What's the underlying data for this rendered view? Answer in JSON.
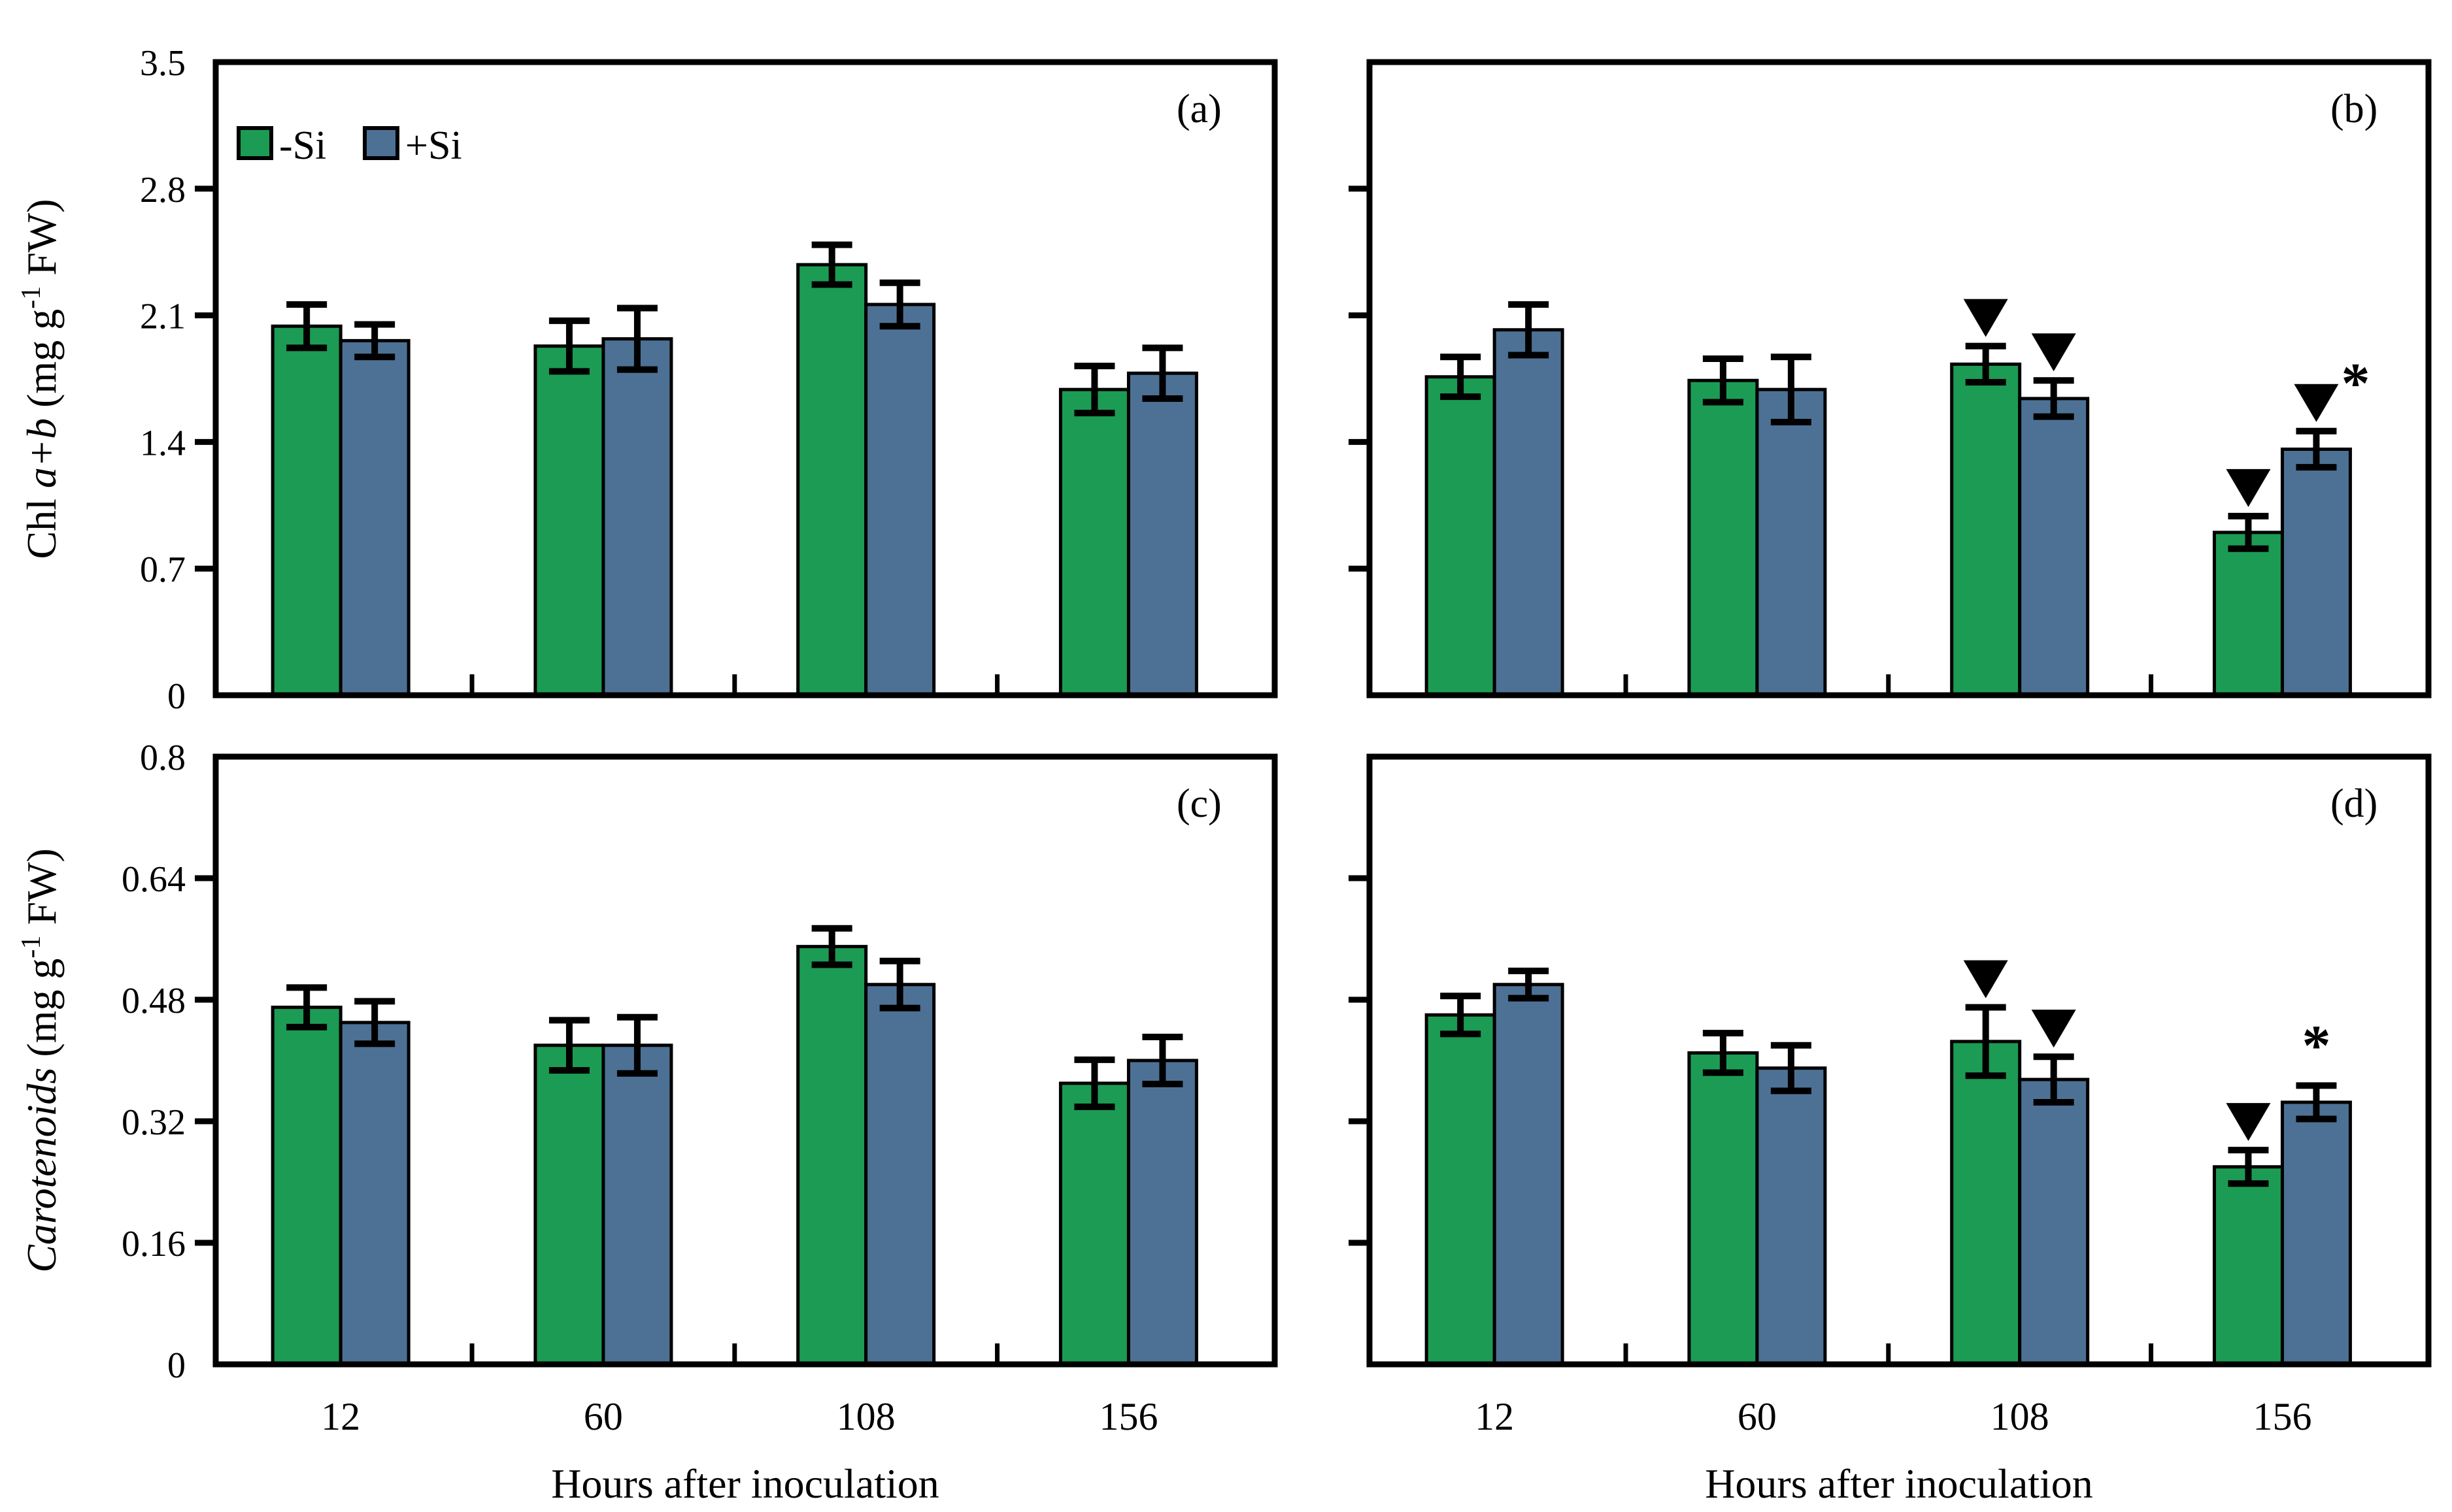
{
  "figure": {
    "xlabel": "Hours after inoculation",
    "panel_letters": [
      "(a)",
      "(b)",
      "(c)",
      "(d)"
    ],
    "legend": [
      {
        "label": "-Si",
        "color": "#1C9B54"
      },
      {
        "label": "+Si",
        "color": "#4D7194"
      }
    ],
    "colors": {
      "minus_si": "#1C9B54",
      "plus_si": "#4D7194",
      "axis": "#000000"
    }
  },
  "chart_data": [
    {
      "panel": "a",
      "letter": "(a)",
      "type": "bar",
      "title": "",
      "ylabel_text": "Chl a+b (mg g-1 FW)",
      "ylabel_parts": {
        "pre": "Chl ",
        "italic": "a+b",
        "post": " (mg g",
        "sup": "-1",
        "end": " FW)"
      },
      "ylim": [
        0,
        3.5
      ],
      "yticks": [
        0,
        0.7,
        1.4,
        2.1,
        2.8,
        3.5
      ],
      "ytick_labels": [
        "0",
        "0.7",
        "1.4",
        "2.1",
        "2.8",
        "3.5"
      ],
      "categories": [
        "12",
        "60",
        "108",
        "156"
      ],
      "show_xtick_labels": false,
      "show_ytick_labels": true,
      "legend_position": "top-left-inside",
      "grid": false,
      "series": [
        {
          "name": "-Si",
          "color": "#1C9B54",
          "values": [
            2.04,
            1.93,
            2.38,
            1.69
          ],
          "errors": [
            0.12,
            0.14,
            0.11,
            0.13
          ],
          "markers": [
            "",
            "",
            "",
            ""
          ]
        },
        {
          "name": "+Si",
          "color": "#4D7194",
          "values": [
            1.96,
            1.97,
            2.16,
            1.78
          ],
          "errors": [
            0.09,
            0.17,
            0.12,
            0.14
          ],
          "markers": [
            "",
            "",
            "",
            ""
          ]
        }
      ]
    },
    {
      "panel": "b",
      "letter": "(b)",
      "type": "bar",
      "title": "",
      "ylabel_text": "",
      "ylabel_parts": null,
      "ylim": [
        0,
        3.5
      ],
      "yticks": [
        0,
        0.7,
        1.4,
        2.1,
        2.8,
        3.5
      ],
      "ytick_labels": [
        "0",
        "0.7",
        "1.4",
        "2.1",
        "2.8",
        "3.5"
      ],
      "categories": [
        "12",
        "60",
        "108",
        "156"
      ],
      "show_xtick_labels": false,
      "show_ytick_labels": false,
      "grid": false,
      "series": [
        {
          "name": "-Si",
          "color": "#1C9B54",
          "values": [
            1.76,
            1.74,
            1.83,
            0.9
          ],
          "errors": [
            0.11,
            0.12,
            0.1,
            0.09
          ],
          "markers": [
            "",
            "",
            "tri",
            "tri"
          ]
        },
        {
          "name": "+Si",
          "color": "#4D7194",
          "values": [
            2.02,
            1.69,
            1.64,
            1.36
          ],
          "errors": [
            0.14,
            0.18,
            0.1,
            0.1
          ],
          "markers": [
            "",
            "",
            "tri",
            "tri*"
          ]
        }
      ]
    },
    {
      "panel": "c",
      "letter": "(c)",
      "type": "bar",
      "title": "",
      "ylabel_text": "Carotenoids (mg g-1 FW)",
      "ylabel_parts": {
        "pre": "",
        "italic": "Carotenoids",
        "post": " (mg g",
        "sup": "-1",
        "end": " FW)"
      },
      "ylim": [
        0,
        0.8
      ],
      "yticks": [
        0,
        0.16,
        0.32,
        0.48,
        0.64,
        0.8
      ],
      "ytick_labels": [
        "0",
        "0.16",
        "0.32",
        "0.48",
        "0.64",
        "0.8"
      ],
      "categories": [
        "12",
        "60",
        "108",
        "156"
      ],
      "show_xtick_labels": true,
      "show_ytick_labels": true,
      "grid": false,
      "series": [
        {
          "name": "-Si",
          "color": "#1C9B54",
          "values": [
            0.47,
            0.42,
            0.55,
            0.37
          ],
          "errors": [
            0.026,
            0.033,
            0.024,
            0.031
          ],
          "markers": [
            "",
            "",
            "",
            ""
          ]
        },
        {
          "name": "+Si",
          "color": "#4D7194",
          "values": [
            0.45,
            0.42,
            0.5,
            0.4
          ],
          "errors": [
            0.028,
            0.037,
            0.031,
            0.031
          ],
          "markers": [
            "",
            "",
            "",
            ""
          ]
        }
      ]
    },
    {
      "panel": "d",
      "letter": "(d)",
      "type": "bar",
      "title": "",
      "ylabel_text": "",
      "ylabel_parts": null,
      "ylim": [
        0,
        0.8
      ],
      "yticks": [
        0,
        0.16,
        0.32,
        0.48,
        0.64,
        0.8
      ],
      "ytick_labels": [
        "0",
        "0.16",
        "0.32",
        "0.48",
        "0.64",
        "0.8"
      ],
      "categories": [
        "12",
        "60",
        "108",
        "156"
      ],
      "show_xtick_labels": true,
      "show_ytick_labels": false,
      "grid": false,
      "series": [
        {
          "name": "-Si",
          "color": "#1C9B54",
          "values": [
            0.46,
            0.41,
            0.425,
            0.26
          ],
          "errors": [
            0.025,
            0.026,
            0.045,
            0.022
          ],
          "markers": [
            "",
            "",
            "tri",
            "tri"
          ]
        },
        {
          "name": "+Si",
          "color": "#4D7194",
          "values": [
            0.5,
            0.39,
            0.375,
            0.345
          ],
          "errors": [
            0.018,
            0.03,
            0.03,
            0.022
          ],
          "markers": [
            "",
            "",
            "tri",
            "star"
          ]
        }
      ]
    }
  ]
}
